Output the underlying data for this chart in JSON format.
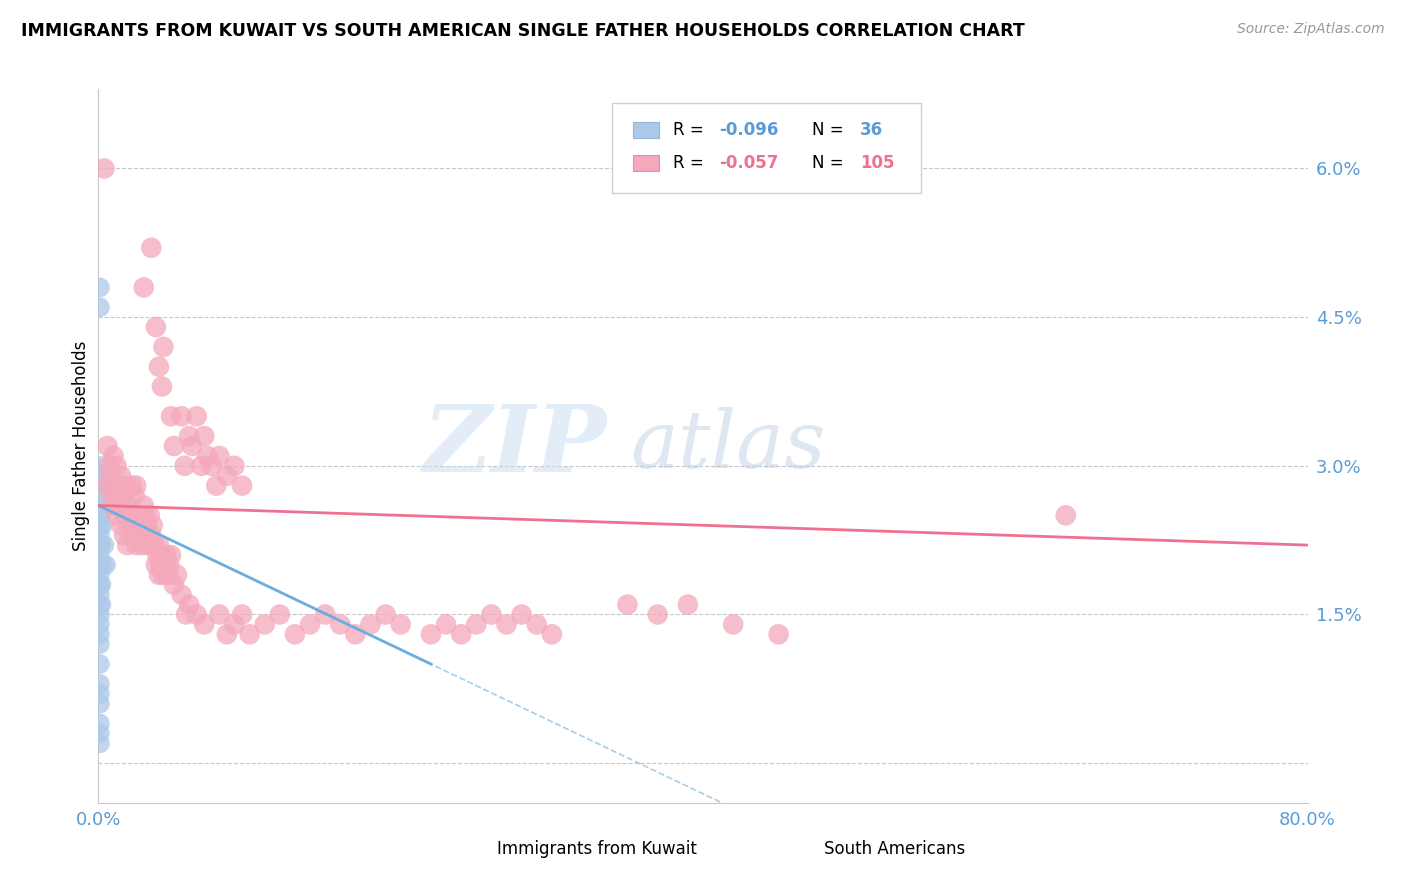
{
  "title": "IMMIGRANTS FROM KUWAIT VS SOUTH AMERICAN SINGLE FATHER HOUSEHOLDS CORRELATION CHART",
  "source": "Source: ZipAtlas.com",
  "ylabel": "Single Father Households",
  "yticks": [
    0.0,
    0.015,
    0.03,
    0.045,
    0.06
  ],
  "ytick_labels": [
    "",
    "1.5%",
    "3.0%",
    "4.5%",
    "6.0%"
  ],
  "xlim": [
    0.0,
    0.8
  ],
  "ylim": [
    -0.004,
    0.068
  ],
  "color_blue": "#adc9e8",
  "color_pink": "#f4a8ba",
  "color_blue_line": "#6aaee0",
  "color_pink_line": "#f07090",
  "color_axis": "#5b9bd5",
  "watermark_zip": "ZIP",
  "watermark_atlas": "atlas",
  "blue_points": [
    [
      0.001,
      0.048
    ],
    [
      0.001,
      0.046
    ],
    [
      0.001,
      0.03
    ],
    [
      0.001,
      0.029
    ],
    [
      0.001,
      0.028
    ],
    [
      0.001,
      0.027
    ],
    [
      0.001,
      0.026
    ],
    [
      0.001,
      0.025
    ],
    [
      0.001,
      0.024
    ],
    [
      0.001,
      0.023
    ],
    [
      0.001,
      0.022
    ],
    [
      0.001,
      0.021
    ],
    [
      0.001,
      0.02
    ],
    [
      0.001,
      0.019
    ],
    [
      0.001,
      0.018
    ],
    [
      0.001,
      0.017
    ],
    [
      0.001,
      0.016
    ],
    [
      0.001,
      0.015
    ],
    [
      0.001,
      0.014
    ],
    [
      0.001,
      0.013
    ],
    [
      0.001,
      0.012
    ],
    [
      0.001,
      0.01
    ],
    [
      0.001,
      0.008
    ],
    [
      0.001,
      0.007
    ],
    [
      0.001,
      0.006
    ],
    [
      0.001,
      0.004
    ],
    [
      0.001,
      0.003
    ],
    [
      0.001,
      0.002
    ],
    [
      0.002,
      0.025
    ],
    [
      0.002,
      0.022
    ],
    [
      0.002,
      0.018
    ],
    [
      0.002,
      0.016
    ],
    [
      0.003,
      0.024
    ],
    [
      0.003,
      0.02
    ],
    [
      0.004,
      0.022
    ],
    [
      0.005,
      0.02
    ]
  ],
  "pink_points": [
    [
      0.004,
      0.06
    ],
    [
      0.03,
      0.048
    ],
    [
      0.035,
      0.052
    ],
    [
      0.038,
      0.044
    ],
    [
      0.04,
      0.04
    ],
    [
      0.042,
      0.038
    ],
    [
      0.043,
      0.042
    ],
    [
      0.048,
      0.035
    ],
    [
      0.05,
      0.032
    ],
    [
      0.055,
      0.035
    ],
    [
      0.057,
      0.03
    ],
    [
      0.06,
      0.033
    ],
    [
      0.062,
      0.032
    ],
    [
      0.065,
      0.035
    ],
    [
      0.068,
      0.03
    ],
    [
      0.07,
      0.033
    ],
    [
      0.072,
      0.031
    ],
    [
      0.075,
      0.03
    ],
    [
      0.078,
      0.028
    ],
    [
      0.08,
      0.031
    ],
    [
      0.085,
      0.029
    ],
    [
      0.09,
      0.03
    ],
    [
      0.095,
      0.028
    ],
    [
      0.005,
      0.028
    ],
    [
      0.006,
      0.032
    ],
    [
      0.007,
      0.03
    ],
    [
      0.008,
      0.029
    ],
    [
      0.009,
      0.027
    ],
    [
      0.01,
      0.031
    ],
    [
      0.01,
      0.026
    ],
    [
      0.011,
      0.028
    ],
    [
      0.012,
      0.025
    ],
    [
      0.012,
      0.03
    ],
    [
      0.013,
      0.027
    ],
    [
      0.014,
      0.026
    ],
    [
      0.015,
      0.029
    ],
    [
      0.015,
      0.024
    ],
    [
      0.016,
      0.027
    ],
    [
      0.017,
      0.023
    ],
    [
      0.017,
      0.028
    ],
    [
      0.018,
      0.025
    ],
    [
      0.019,
      0.022
    ],
    [
      0.02,
      0.026
    ],
    [
      0.021,
      0.025
    ],
    [
      0.022,
      0.024
    ],
    [
      0.022,
      0.028
    ],
    [
      0.023,
      0.023
    ],
    [
      0.024,
      0.027
    ],
    [
      0.025,
      0.022
    ],
    [
      0.025,
      0.028
    ],
    [
      0.026,
      0.025
    ],
    [
      0.027,
      0.023
    ],
    [
      0.028,
      0.024
    ],
    [
      0.029,
      0.022
    ],
    [
      0.03,
      0.026
    ],
    [
      0.03,
      0.023
    ],
    [
      0.031,
      0.025
    ],
    [
      0.032,
      0.024
    ],
    [
      0.033,
      0.022
    ],
    [
      0.034,
      0.025
    ],
    [
      0.035,
      0.023
    ],
    [
      0.036,
      0.024
    ],
    [
      0.037,
      0.022
    ],
    [
      0.038,
      0.02
    ],
    [
      0.039,
      0.021
    ],
    [
      0.04,
      0.022
    ],
    [
      0.04,
      0.019
    ],
    [
      0.041,
      0.02
    ],
    [
      0.042,
      0.021
    ],
    [
      0.043,
      0.019
    ],
    [
      0.044,
      0.02
    ],
    [
      0.045,
      0.021
    ],
    [
      0.046,
      0.019
    ],
    [
      0.047,
      0.02
    ],
    [
      0.048,
      0.021
    ],
    [
      0.05,
      0.018
    ],
    [
      0.052,
      0.019
    ],
    [
      0.055,
      0.017
    ],
    [
      0.058,
      0.015
    ],
    [
      0.06,
      0.016
    ],
    [
      0.065,
      0.015
    ],
    [
      0.07,
      0.014
    ],
    [
      0.08,
      0.015
    ],
    [
      0.085,
      0.013
    ],
    [
      0.09,
      0.014
    ],
    [
      0.095,
      0.015
    ],
    [
      0.1,
      0.013
    ],
    [
      0.11,
      0.014
    ],
    [
      0.12,
      0.015
    ],
    [
      0.13,
      0.013
    ],
    [
      0.14,
      0.014
    ],
    [
      0.15,
      0.015
    ],
    [
      0.16,
      0.014
    ],
    [
      0.17,
      0.013
    ],
    [
      0.18,
      0.014
    ],
    [
      0.19,
      0.015
    ],
    [
      0.2,
      0.014
    ],
    [
      0.22,
      0.013
    ],
    [
      0.23,
      0.014
    ],
    [
      0.24,
      0.013
    ],
    [
      0.25,
      0.014
    ],
    [
      0.26,
      0.015
    ],
    [
      0.27,
      0.014
    ],
    [
      0.28,
      0.015
    ],
    [
      0.29,
      0.014
    ],
    [
      0.3,
      0.013
    ],
    [
      0.35,
      0.016
    ],
    [
      0.37,
      0.015
    ],
    [
      0.39,
      0.016
    ],
    [
      0.42,
      0.014
    ],
    [
      0.45,
      0.013
    ],
    [
      0.64,
      0.025
    ]
  ],
  "blue_line_x": [
    0.0,
    0.22
  ],
  "blue_line_y_start": 0.026,
  "blue_line_y_end": 0.01,
  "pink_line_x": [
    0.0,
    0.8
  ],
  "pink_line_y_start": 0.026,
  "pink_line_y_end": 0.022
}
